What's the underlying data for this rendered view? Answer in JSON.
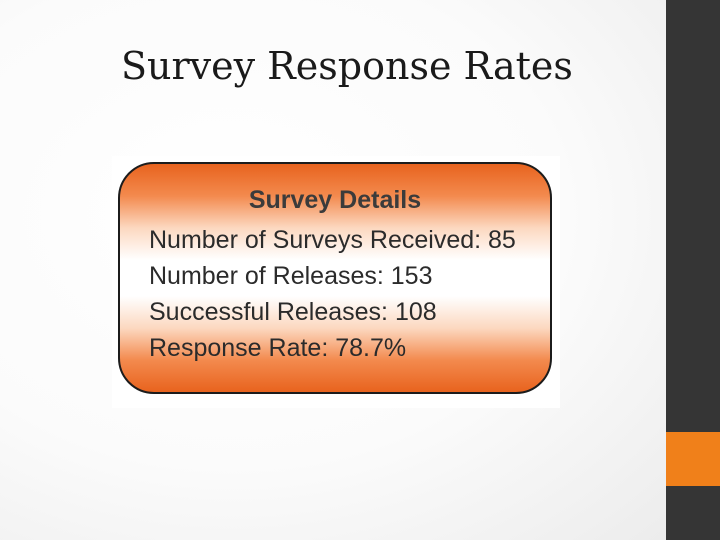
{
  "slide": {
    "title": "Survey Response Rates"
  },
  "survey_details": {
    "heading": "Survey Details",
    "lines": [
      "Number of Surveys Received: 85",
      "Number of Releases: 153",
      "Successful Releases: 108",
      "Response Rate: 78.7%"
    ]
  },
  "colors": {
    "accent": "#f0801a",
    "sidebar": "#353535",
    "box_orange": "#e8631e"
  }
}
